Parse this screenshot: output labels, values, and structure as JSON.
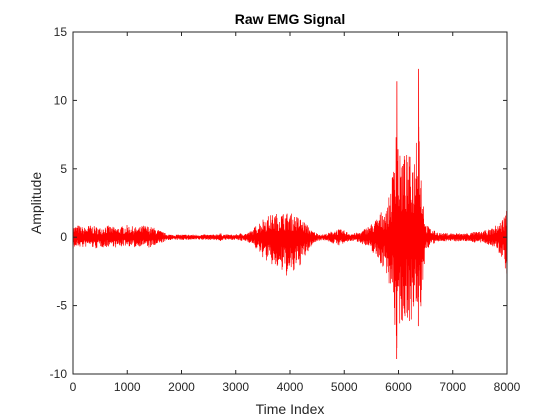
{
  "chart_data": {
    "type": "line",
    "title": "Raw EMG Signal",
    "xlabel": "Time Index",
    "ylabel": "Amplitude",
    "xlim": [
      0,
      8000
    ],
    "ylim": [
      -10,
      15
    ],
    "x_ticks": [
      0,
      1000,
      2000,
      3000,
      4000,
      5000,
      6000,
      7000,
      8000
    ],
    "x_tick_labels": [
      "0",
      "1000",
      "2000",
      "3000",
      "4000",
      "5000",
      "6000",
      "7000",
      "8000"
    ],
    "y_ticks": [
      -10,
      -5,
      0,
      5,
      10,
      15
    ],
    "y_tick_labels": [
      "-10",
      "-5",
      "0",
      "5",
      "10",
      "15"
    ],
    "grid": false,
    "legend": "none",
    "series": [
      {
        "color": "#ff0000",
        "x": [
          0,
          100,
          200,
          300,
          400,
          500,
          600,
          700,
          800,
          900,
          1000,
          1100,
          1200,
          1300,
          1400,
          1500,
          1600,
          1700,
          1800,
          1900,
          2000,
          2100,
          2200,
          2300,
          2400,
          2500,
          2600,
          2700,
          2800,
          2900,
          3000,
          3100,
          3200,
          3300,
          3400,
          3500,
          3600,
          3700,
          3800,
          3900,
          4000,
          4100,
          4200,
          4300,
          4400,
          4500,
          4600,
          4700,
          4800,
          4900,
          5000,
          5100,
          5200,
          5300,
          5400,
          5500,
          5600,
          5700,
          5800,
          5900,
          5970,
          6000,
          6100,
          6200,
          6300,
          6370,
          6400,
          6500,
          6600,
          6700,
          6800,
          6900,
          7000,
          7100,
          7200,
          7300,
          7400,
          7500,
          7600,
          7700,
          7800,
          7900,
          8000
        ],
        "upper": [
          0.8,
          0.9,
          0.7,
          0.9,
          0.8,
          0.7,
          0.9,
          0.8,
          0.7,
          0.8,
          0.9,
          0.8,
          0.7,
          0.9,
          0.8,
          0.7,
          0.5,
          0.3,
          0.2,
          0.2,
          0.2,
          0.2,
          0.2,
          0.2,
          0.2,
          0.2,
          0.2,
          0.3,
          0.2,
          0.2,
          0.2,
          0.3,
          0.3,
          0.5,
          1.0,
          1.4,
          1.6,
          1.7,
          1.8,
          1.8,
          1.8,
          1.6,
          1.4,
          1.0,
          0.5,
          0.3,
          0.2,
          0.3,
          0.5,
          0.6,
          0.5,
          0.3,
          0.3,
          0.4,
          0.7,
          1.0,
          1.4,
          2.0,
          2.3,
          5.0,
          11.4,
          6.0,
          6.2,
          6.0,
          6.2,
          12.3,
          6.0,
          1.0,
          0.6,
          0.4,
          0.3,
          0.3,
          0.3,
          0.3,
          0.3,
          0.3,
          0.4,
          0.4,
          0.5,
          0.6,
          0.9,
          1.2,
          2.2
        ],
        "lower": [
          -0.9,
          -0.7,
          -0.8,
          -0.6,
          -0.9,
          -0.7,
          -0.8,
          -0.6,
          -0.8,
          -0.7,
          -0.6,
          -0.8,
          -0.7,
          -0.6,
          -0.8,
          -0.7,
          -0.5,
          -0.3,
          -0.2,
          -0.2,
          -0.2,
          -0.2,
          -0.2,
          -0.2,
          -0.2,
          -0.2,
          -0.2,
          -0.3,
          -0.2,
          -0.2,
          -0.2,
          -0.3,
          -0.3,
          -0.5,
          -1.0,
          -1.5,
          -1.9,
          -2.2,
          -2.5,
          -2.8,
          -3.0,
          -2.6,
          -2.0,
          -1.4,
          -0.6,
          -0.3,
          -0.2,
          -0.3,
          -0.5,
          -0.6,
          -0.5,
          -0.3,
          -0.3,
          -0.4,
          -0.7,
          -1.0,
          -1.5,
          -2.2,
          -2.8,
          -5.0,
          -8.9,
          -6.5,
          -6.3,
          -6.2,
          -6.0,
          -6.5,
          -6.0,
          -1.0,
          -0.6,
          -0.4,
          -0.3,
          -0.3,
          -0.3,
          -0.3,
          -0.3,
          -0.3,
          -0.4,
          -0.4,
          -0.5,
          -0.6,
          -0.9,
          -1.5,
          -2.8
        ]
      }
    ]
  }
}
